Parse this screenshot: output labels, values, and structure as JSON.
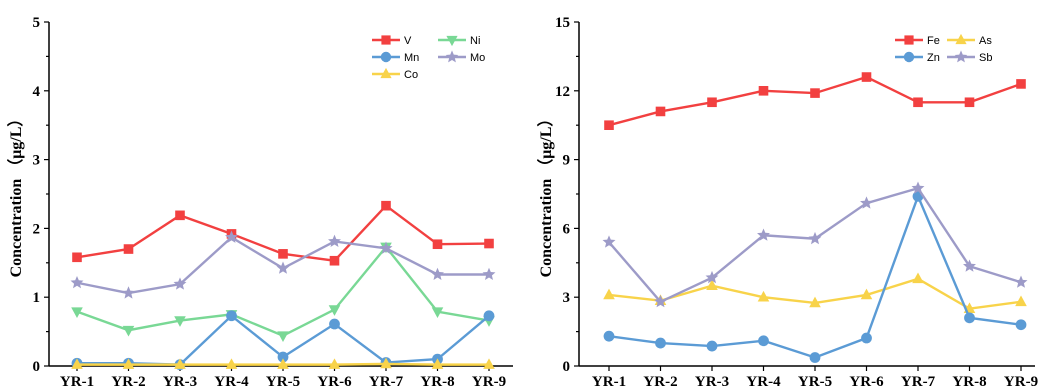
{
  "chart_data": [
    {
      "type": "line",
      "categories": [
        "YR-1",
        "YR-2",
        "YR-3",
        "YR-4",
        "YR-5",
        "YR-6",
        "YR-7",
        "YR-8",
        "YR-9"
      ],
      "ylabel": "Concentration （μg/L）",
      "ylim": [
        0,
        5
      ],
      "yticks": [
        0,
        1,
        2,
        3,
        4,
        5
      ],
      "grid": false,
      "legend_position": "top-right",
      "legend_columns": 2,
      "series": [
        {
          "name": "V",
          "color": "#f24040",
          "marker": "square",
          "values": [
            1.58,
            1.7,
            2.19,
            1.92,
            1.63,
            1.53,
            2.33,
            1.77,
            1.78
          ]
        },
        {
          "name": "Ni",
          "color": "#79d895",
          "marker": "triangle-down",
          "values": [
            0.79,
            0.52,
            0.66,
            0.75,
            0.44,
            0.82,
            1.73,
            0.79,
            0.66
          ]
        },
        {
          "name": "Mn",
          "color": "#5b9bd5",
          "marker": "circle",
          "values": [
            0.04,
            0.04,
            0.02,
            0.73,
            0.13,
            0.61,
            0.05,
            0.1,
            0.73
          ]
        },
        {
          "name": "Mo",
          "color": "#9d9bc8",
          "marker": "star",
          "values": [
            1.21,
            1.06,
            1.19,
            1.87,
            1.42,
            1.81,
            1.71,
            1.33,
            1.33
          ]
        },
        {
          "name": "Co",
          "color": "#f8d34a",
          "marker": "triangle-up",
          "values": [
            0.02,
            0.02,
            0.02,
            0.02,
            0.02,
            0.02,
            0.03,
            0.02,
            0.02
          ]
        }
      ]
    },
    {
      "type": "line",
      "categories": [
        "YR-1",
        "YR-2",
        "YR-3",
        "YR-4",
        "YR-5",
        "YR-6",
        "YR-7",
        "YR-8",
        "YR-9"
      ],
      "ylabel": "Concentration （μg/L）",
      "ylim": [
        0,
        15
      ],
      "yticks": [
        0,
        3,
        6,
        9,
        12,
        15
      ],
      "grid": false,
      "legend_position": "top-right",
      "legend_columns": 2,
      "series": [
        {
          "name": "Fe",
          "color": "#f24040",
          "marker": "square",
          "values": [
            10.5,
            11.1,
            11.5,
            12.0,
            11.9,
            12.6,
            11.5,
            11.5,
            12.3
          ]
        },
        {
          "name": "As",
          "color": "#f8d34a",
          "marker": "triangle-up",
          "values": [
            3.1,
            2.85,
            3.5,
            3.0,
            2.75,
            3.1,
            3.8,
            2.5,
            2.8
          ]
        },
        {
          "name": "Zn",
          "color": "#5b9bd5",
          "marker": "circle",
          "values": [
            1.3,
            1.0,
            0.87,
            1.1,
            0.37,
            1.22,
            7.4,
            2.1,
            1.8
          ]
        },
        {
          "name": "Sb",
          "color": "#9d9bc8",
          "marker": "star",
          "values": [
            5.4,
            2.8,
            3.85,
            5.7,
            5.55,
            7.1,
            7.75,
            4.35,
            3.65
          ]
        }
      ]
    }
  ]
}
